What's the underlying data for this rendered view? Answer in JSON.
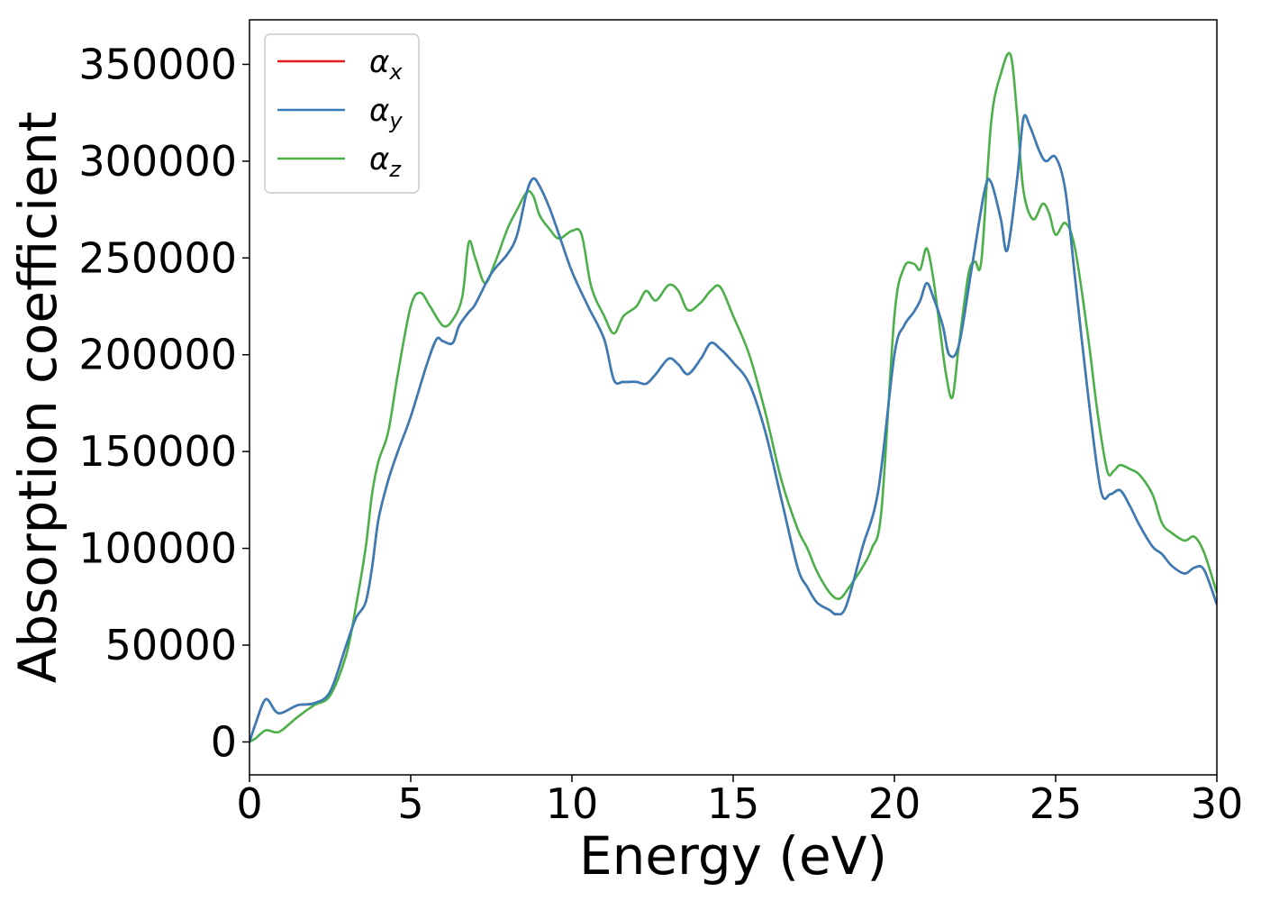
{
  "chart_data": {
    "type": "line",
    "xlabel": "Energy (eV)",
    "ylabel": "Absorption coefficient",
    "xlim": [
      0,
      30
    ],
    "ylim": [
      -17000,
      373000
    ],
    "xticks": [
      0,
      5,
      10,
      15,
      20,
      25,
      30
    ],
    "xtick_labels": [
      "0",
      "5",
      "10",
      "15",
      "20",
      "25",
      "30"
    ],
    "yticks": [
      0,
      50000,
      100000,
      150000,
      200000,
      250000,
      300000,
      350000
    ],
    "ytick_labels": [
      "0",
      "50000",
      "100000",
      "150000",
      "200000",
      "250000",
      "300000",
      "350000"
    ],
    "grid": false,
    "legend_position": "top-left",
    "series": [
      {
        "name": "α",
        "subscript": "x",
        "color": "#e41a1c",
        "x": [
          0,
          0.2,
          0.5,
          0.8,
          1.0,
          1.5,
          2.0,
          2.5,
          3.0,
          3.3,
          3.6,
          3.8,
          4.0,
          4.3,
          4.6,
          5.0,
          5.5,
          5.8,
          6.0,
          6.3,
          6.5,
          6.8,
          7.0,
          7.5,
          8.0,
          8.3,
          8.6,
          8.8,
          9.0,
          9.3,
          9.6,
          10.0,
          10.5,
          11.0,
          11.3,
          11.6,
          12.0,
          12.3,
          12.6,
          13.0,
          13.3,
          13.6,
          14.0,
          14.3,
          14.6,
          15.0,
          15.5,
          16.0,
          16.5,
          17.0,
          17.3,
          17.6,
          18.0,
          18.2,
          18.5,
          19.0,
          19.5,
          20.0,
          20.3,
          20.6,
          20.8,
          21.0,
          21.2,
          21.5,
          21.7,
          22.0,
          22.4,
          22.8,
          23.0,
          23.3,
          23.5,
          23.8,
          24.0,
          24.2,
          24.5,
          24.7,
          25.0,
          25.3,
          25.6,
          26.0,
          26.4,
          26.7,
          27.0,
          27.3,
          27.6,
          28.0,
          28.3,
          28.6,
          29.0,
          29.3,
          29.6,
          30.0
        ],
        "y": [
          0,
          10000,
          22000,
          16000,
          15000,
          19000,
          20000,
          26000,
          50000,
          64000,
          72000,
          90000,
          115000,
          135000,
          150000,
          168000,
          195000,
          208000,
          207000,
          206000,
          215000,
          222000,
          226000,
          242000,
          252000,
          262000,
          284000,
          291000,
          287000,
          276000,
          262000,
          243000,
          225000,
          208000,
          187000,
          186000,
          186000,
          185000,
          190000,
          198000,
          195000,
          190000,
          198000,
          206000,
          203000,
          196000,
          185000,
          160000,
          125000,
          90000,
          80000,
          72000,
          68000,
          66000,
          70000,
          100000,
          130000,
          200000,
          215000,
          222000,
          228000,
          237000,
          230000,
          215000,
          200000,
          205000,
          245000,
          285000,
          289000,
          270000,
          254000,
          290000,
          322000,
          318000,
          305000,
          300000,
          302000,
          285000,
          240000,
          180000,
          130000,
          128000,
          130000,
          122000,
          112000,
          101000,
          97000,
          91000,
          87000,
          90000,
          89000,
          71000
        ]
      },
      {
        "name": "α",
        "subscript": "y",
        "color": "#377eb8",
        "x": [
          0,
          0.2,
          0.5,
          0.8,
          1.0,
          1.5,
          2.0,
          2.5,
          3.0,
          3.3,
          3.6,
          3.8,
          4.0,
          4.3,
          4.6,
          5.0,
          5.5,
          5.8,
          6.0,
          6.3,
          6.5,
          6.8,
          7.0,
          7.5,
          8.0,
          8.3,
          8.6,
          8.8,
          9.0,
          9.3,
          9.6,
          10.0,
          10.5,
          11.0,
          11.3,
          11.6,
          12.0,
          12.3,
          12.6,
          13.0,
          13.3,
          13.6,
          14.0,
          14.3,
          14.6,
          15.0,
          15.5,
          16.0,
          16.5,
          17.0,
          17.3,
          17.6,
          18.0,
          18.2,
          18.5,
          19.0,
          19.5,
          20.0,
          20.3,
          20.6,
          20.8,
          21.0,
          21.2,
          21.5,
          21.7,
          22.0,
          22.4,
          22.8,
          23.0,
          23.3,
          23.5,
          23.8,
          24.0,
          24.2,
          24.5,
          24.7,
          25.0,
          25.3,
          25.6,
          26.0,
          26.4,
          26.7,
          27.0,
          27.3,
          27.6,
          28.0,
          28.3,
          28.6,
          29.0,
          29.3,
          29.6,
          30.0
        ],
        "y": [
          0,
          10000,
          22000,
          16000,
          15000,
          19000,
          20000,
          26000,
          50000,
          64000,
          72000,
          90000,
          115000,
          135000,
          150000,
          168000,
          195000,
          208000,
          207000,
          206000,
          215000,
          222000,
          226000,
          242000,
          252000,
          262000,
          284000,
          291000,
          287000,
          276000,
          262000,
          243000,
          225000,
          208000,
          187000,
          186000,
          186000,
          185000,
          190000,
          198000,
          195000,
          190000,
          198000,
          206000,
          203000,
          196000,
          185000,
          160000,
          125000,
          90000,
          80000,
          72000,
          68000,
          66000,
          70000,
          100000,
          130000,
          200000,
          215000,
          222000,
          228000,
          237000,
          230000,
          215000,
          200000,
          205000,
          245000,
          285000,
          289000,
          270000,
          254000,
          290000,
          322000,
          318000,
          305000,
          300000,
          302000,
          285000,
          240000,
          180000,
          130000,
          128000,
          130000,
          122000,
          112000,
          101000,
          97000,
          91000,
          87000,
          90000,
          89000,
          71000
        ]
      },
      {
        "name": "α",
        "subscript": "z",
        "color": "#4daf4a",
        "x": [
          0,
          0.2,
          0.5,
          0.8,
          1.0,
          1.5,
          2.0,
          2.5,
          3.0,
          3.3,
          3.6,
          3.8,
          4.0,
          4.3,
          4.6,
          5.0,
          5.3,
          5.6,
          6.0,
          6.3,
          6.6,
          6.8,
          7.0,
          7.3,
          7.6,
          8.0,
          8.3,
          8.6,
          8.8,
          9.0,
          9.3,
          9.6,
          10.0,
          10.3,
          10.6,
          11.0,
          11.3,
          11.6,
          12.0,
          12.3,
          12.6,
          13.0,
          13.3,
          13.6,
          14.0,
          14.3,
          14.6,
          15.0,
          15.5,
          16.0,
          16.5,
          17.0,
          17.3,
          17.6,
          18.0,
          18.3,
          18.6,
          19.0,
          19.3,
          19.6,
          20.0,
          20.3,
          20.6,
          20.8,
          21.0,
          21.2,
          21.4,
          21.6,
          21.8,
          22.0,
          22.3,
          22.5,
          22.7,
          23.0,
          23.3,
          23.6,
          23.8,
          24.0,
          24.3,
          24.6,
          24.8,
          25.0,
          25.3,
          25.6,
          26.0,
          26.3,
          26.6,
          26.8,
          27.0,
          27.3,
          27.6,
          28.0,
          28.3,
          28.6,
          29.0,
          29.3,
          29.6,
          30.0
        ],
        "y": [
          0,
          2000,
          6000,
          5000,
          6000,
          13000,
          19000,
          24000,
          45000,
          70000,
          100000,
          128000,
          145000,
          160000,
          190000,
          225000,
          232000,
          225000,
          215000,
          218000,
          230000,
          258000,
          250000,
          237000,
          247000,
          265000,
          275000,
          284000,
          282000,
          272000,
          265000,
          260000,
          264000,
          262000,
          235000,
          220000,
          211000,
          220000,
          225000,
          233000,
          228000,
          236000,
          233000,
          223000,
          227000,
          233000,
          235000,
          220000,
          200000,
          170000,
          135000,
          110000,
          100000,
          88000,
          77000,
          74000,
          80000,
          90000,
          100000,
          120000,
          220000,
          245000,
          247000,
          244000,
          255000,
          240000,
          215000,
          190000,
          178000,
          205000,
          242000,
          248000,
          249000,
          320000,
          345000,
          355000,
          325000,
          285000,
          270000,
          278000,
          273000,
          262000,
          268000,
          255000,
          210000,
          170000,
          140000,
          140000,
          143000,
          141000,
          138000,
          128000,
          113000,
          108000,
          104000,
          106000,
          98000,
          77000
        ]
      }
    ]
  }
}
